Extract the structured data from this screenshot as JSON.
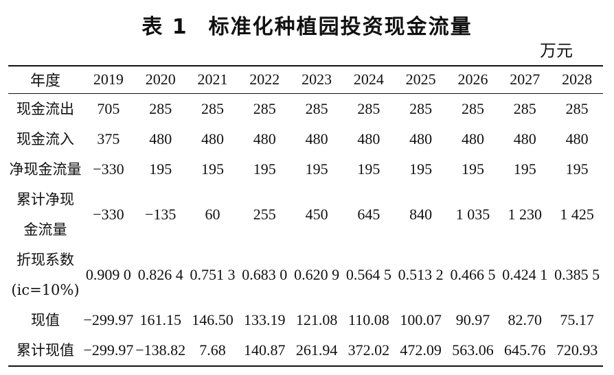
{
  "title": {
    "number": "表 1",
    "text": "标准化种植园投资现金流量"
  },
  "unit": "万元",
  "table": {
    "header_label": "年度",
    "years": [
      "2019",
      "2020",
      "2021",
      "2022",
      "2023",
      "2024",
      "2025",
      "2026",
      "2027",
      "2028"
    ],
    "rows": [
      {
        "label_lines": [
          "现金流出"
        ],
        "values": [
          "705",
          "285",
          "285",
          "285",
          "285",
          "285",
          "285",
          "285",
          "285",
          "285"
        ]
      },
      {
        "label_lines": [
          "现金流入"
        ],
        "values": [
          "375",
          "480",
          "480",
          "480",
          "480",
          "480",
          "480",
          "480",
          "480",
          "480"
        ]
      },
      {
        "label_lines": [
          "净现金流量"
        ],
        "values": [
          "−330",
          "195",
          "195",
          "195",
          "195",
          "195",
          "195",
          "195",
          "195",
          "195"
        ]
      },
      {
        "label_lines": [
          "累计净现",
          "金流量"
        ],
        "values": [
          "−330",
          "−135",
          "60",
          "255",
          "450",
          "645",
          "840",
          "1 035",
          "1 230",
          "1 425"
        ]
      },
      {
        "label_lines": [
          "折现系数",
          "(ic=10%)"
        ],
        "values": [
          "0.909 0",
          "0.826 4",
          "0.751 3",
          "0.683 0",
          "0.620 9",
          "0.564 5",
          "0.513 2",
          "0.466 5",
          "0.424 1",
          "0.385 5"
        ]
      },
      {
        "label_lines": [
          "现值"
        ],
        "values": [
          "−299.97",
          "161.15",
          "146.50",
          "133.19",
          "121.08",
          "110.08",
          "100.07",
          "90.97",
          "82.70",
          "75.17"
        ]
      },
      {
        "label_lines": [
          "累计现值"
        ],
        "values": [
          "−299.97",
          "−138.82",
          "7.68",
          "140.87",
          "261.94",
          "372.02",
          "472.09",
          "563.06",
          "645.76",
          "720.93"
        ]
      }
    ]
  }
}
